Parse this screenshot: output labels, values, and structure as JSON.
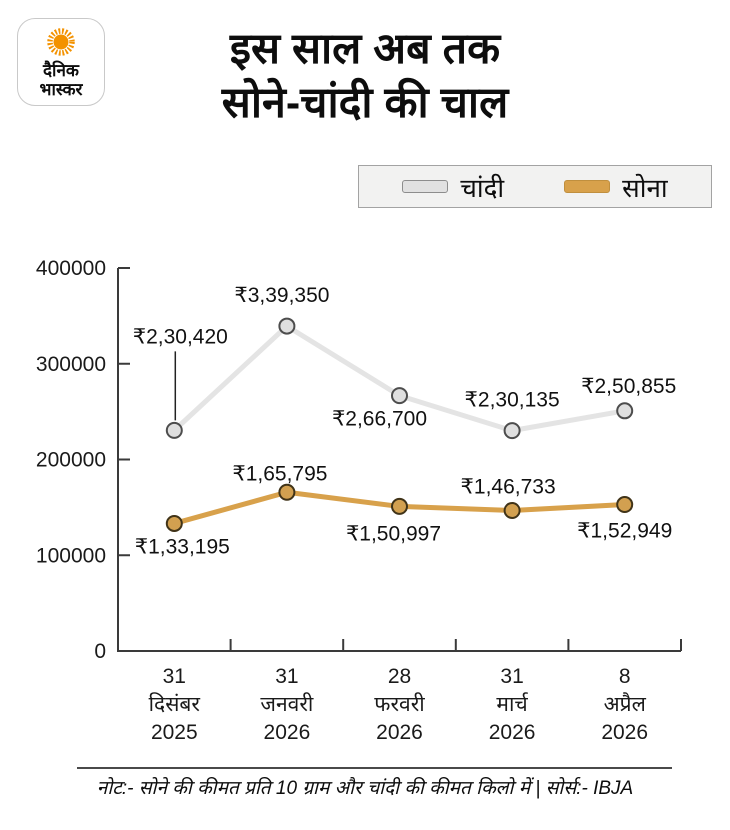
{
  "brand": {
    "line1": "दैनिक",
    "line2": "भास्कर"
  },
  "title": {
    "line1": "इस साल अब तक",
    "line2": "सोने-चांदी की चाल"
  },
  "legend": {
    "silver_label": "चांदी",
    "gold_label": "सोना"
  },
  "footer": {
    "note": "नोट:- सोने की कीमत प्रति 10 ग्राम और चांदी की कीमत किलो में | सोर्स:- IBJA"
  },
  "colors": {
    "silver_line": "#e4e4e4",
    "silver_marker_fill": "#dfdfdf",
    "silver_marker_edge": "#4d4d4d",
    "gold_line": "#d8a14b",
    "gold_marker_fill": "#d2a050",
    "gold_marker_edge": "#403318",
    "axis": "#3a3a3a",
    "value_label": "#111111",
    "leader_line": "#222222"
  },
  "chart_data": {
    "type": "line",
    "categories": [
      [
        "31",
        "दिसंबर",
        "2025"
      ],
      [
        "31",
        "जनवरी",
        "2026"
      ],
      [
        "28",
        "फरवरी",
        "2026"
      ],
      [
        "31",
        "मार्च",
        "2026"
      ],
      [
        "8",
        "अप्रैल",
        "2026"
      ]
    ],
    "ylim": [
      0,
      400000
    ],
    "y_ticks": [
      0,
      100000,
      200000,
      300000,
      400000
    ],
    "grid": false,
    "legend_position": "top-right",
    "series": [
      {
        "name": "चांदी",
        "key": "silver",
        "values": [
          230420,
          339350,
          266700,
          230135,
          250855
        ],
        "labels": [
          "₹2,30,420",
          "₹3,39,350",
          "₹2,66,700",
          "₹2,30,135",
          "₹2,50,855"
        ],
        "label_offsets": [
          {
            "dx": 6,
            "dy": -87,
            "leader": true
          },
          {
            "dx": -5,
            "dy": -24
          },
          {
            "dx": -20,
            "dy": 30
          },
          {
            "dx": 0,
            "dy": -24
          },
          {
            "dx": 4,
            "dy": -18
          }
        ]
      },
      {
        "name": "सोना",
        "key": "gold",
        "values": [
          133195,
          165795,
          150997,
          146733,
          152949
        ],
        "labels": [
          "₹1,33,195",
          "₹1,65,795",
          "₹1,50,997",
          "₹1,46,733",
          "₹1,52,949"
        ],
        "label_offsets": [
          {
            "dx": 8,
            "dy": 30
          },
          {
            "dx": -7,
            "dy": -12
          },
          {
            "dx": -6,
            "dy": 34
          },
          {
            "dx": -4,
            "dy": -17
          },
          {
            "dx": 0,
            "dy": 33
          }
        ]
      }
    ]
  }
}
